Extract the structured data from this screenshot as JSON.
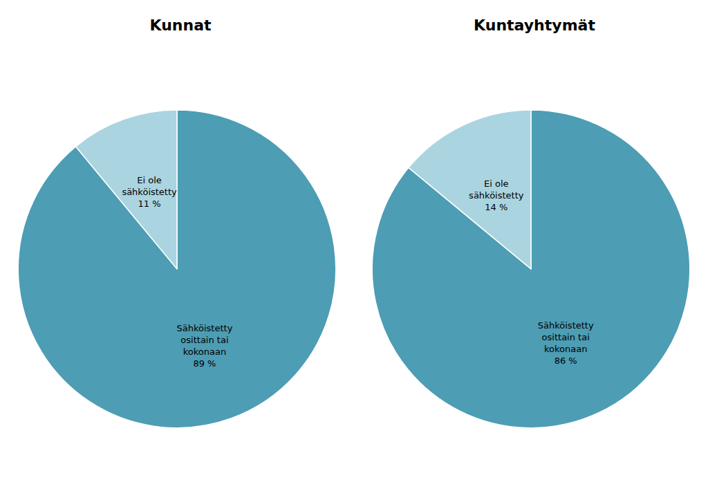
{
  "chart_data": [
    {
      "type": "pie",
      "title": "Kunnat",
      "categories": [
        "Sähköistetty\nosittain tai\nkokonaan",
        "Ei ole\nsähköistetty"
      ],
      "values": [
        89,
        11
      ],
      "value_labels": [
        "89 %",
        "11 %"
      ],
      "colors": [
        "#4d9db4",
        "#aad4e0"
      ],
      "data_labels": true
    },
    {
      "type": "pie",
      "title": "Kuntayhtymät",
      "categories": [
        "Sähköistetty\nosittain tai\nkokonaan",
        "Ei ole\nsähköistetty"
      ],
      "values": [
        86,
        14
      ],
      "value_labels": [
        "86 %",
        "14 %"
      ],
      "colors": [
        "#4d9db4",
        "#aad4e0"
      ],
      "data_labels": true
    }
  ]
}
